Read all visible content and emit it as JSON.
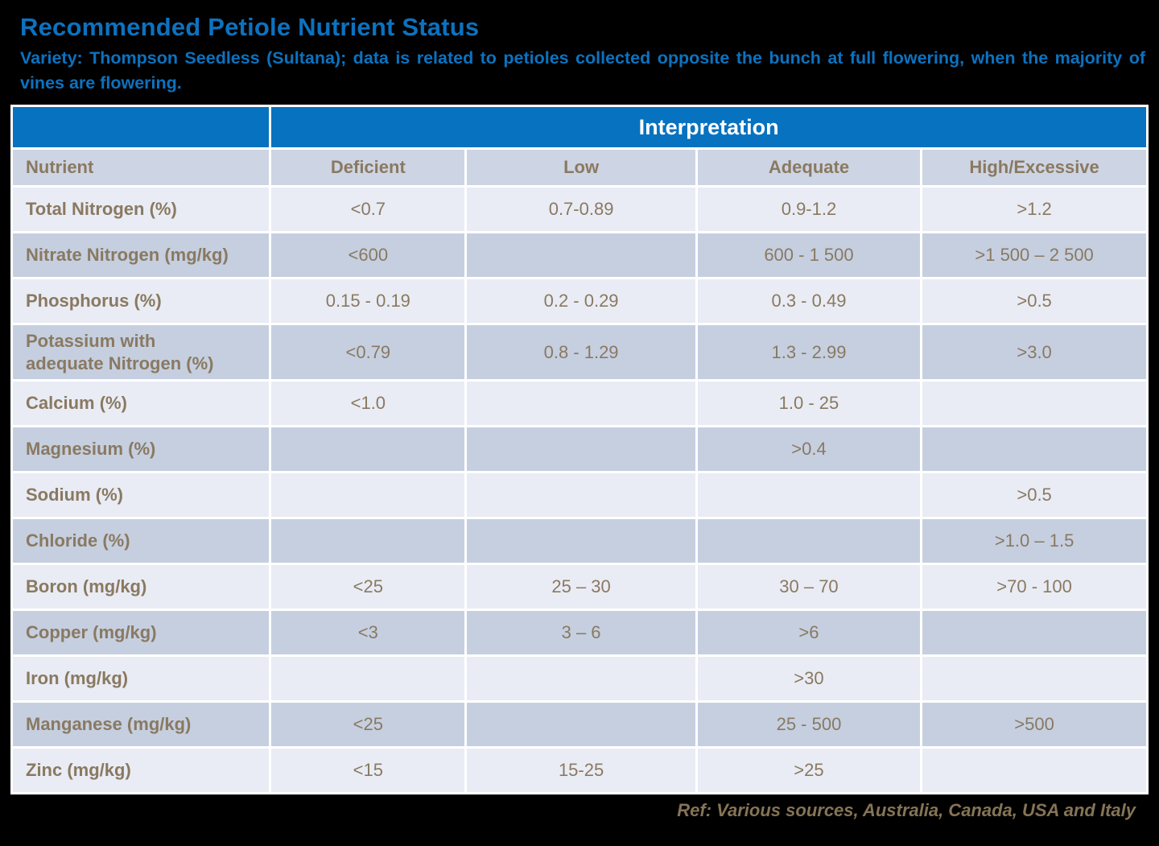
{
  "page": {
    "title": "Recommended Petiole Nutrient Status",
    "subtitle": "Variety: Thompson Seedless (Sultana); data is related to petioles collected opposite the bunch at full flowering, when the majority of vines are flowering.",
    "footer": "Ref: Various sources, Australia, Canada, USA and Italy"
  },
  "colors": {
    "background": "#000000",
    "title_blue": "#0C72BF",
    "header_blue": "#0772BF",
    "subheader_bg": "#CDD4E3",
    "row_light": "#E9ECF4",
    "row_dark": "#C5CFE0",
    "cell_text_brown": "#8A7961",
    "footer_text": "#857455",
    "grid_gap_white": "#FFFFFF"
  },
  "table": {
    "span_header": "Interpretation",
    "columns": [
      "Nutrient",
      "Deficient",
      "Low",
      "Adequate",
      "High/Excessive"
    ],
    "rows": [
      {
        "nutrient": "Total Nitrogen (%)",
        "deficient": "<0.7",
        "low": "0.7-0.89",
        "adequate": "0.9-1.2",
        "high": ">1.2"
      },
      {
        "nutrient": "Nitrate Nitrogen (mg/kg)",
        "deficient": "<600",
        "low": "",
        "adequate": "600 - 1 500",
        "high": ">1 500 – 2 500"
      },
      {
        "nutrient": "Phosphorus (%)",
        "deficient": "0.15 - 0.19",
        "low": "0.2 - 0.29",
        "adequate": "0.3 - 0.49",
        "high": ">0.5"
      },
      {
        "nutrient": "Potassium with\nadequate Nitrogen (%)",
        "deficient": "<0.79",
        "low": "0.8 - 1.29",
        "adequate": "1.3 - 2.99",
        "high": ">3.0"
      },
      {
        "nutrient": "Calcium (%)",
        "deficient": "<1.0",
        "low": "",
        "adequate": "1.0 - 25",
        "high": ""
      },
      {
        "nutrient": "Magnesium (%)",
        "deficient": "",
        "low": "",
        "adequate": ">0.4",
        "high": ""
      },
      {
        "nutrient": "Sodium (%)",
        "deficient": "",
        "low": "",
        "adequate": "",
        "high": ">0.5"
      },
      {
        "nutrient": "Chloride (%)",
        "deficient": "",
        "low": "",
        "adequate": "",
        "high": ">1.0 – 1.5"
      },
      {
        "nutrient": "Boron (mg/kg)",
        "deficient": "<25",
        "low": "25 – 30",
        "adequate": "30 – 70",
        "high": ">70 - 100"
      },
      {
        "nutrient": "Copper (mg/kg)",
        "deficient": "<3",
        "low": "3 – 6",
        "adequate": ">6",
        "high": ""
      },
      {
        "nutrient": "Iron (mg/kg)",
        "deficient": "",
        "low": "",
        "adequate": ">30",
        "high": ""
      },
      {
        "nutrient": "Manganese (mg/kg)",
        "deficient": "<25",
        "low": "",
        "adequate": "25 - 500",
        "high": ">500"
      },
      {
        "nutrient": "Zinc (mg/kg)",
        "deficient": "<15",
        "low": "15-25",
        "adequate": ">25",
        "high": ""
      }
    ]
  }
}
